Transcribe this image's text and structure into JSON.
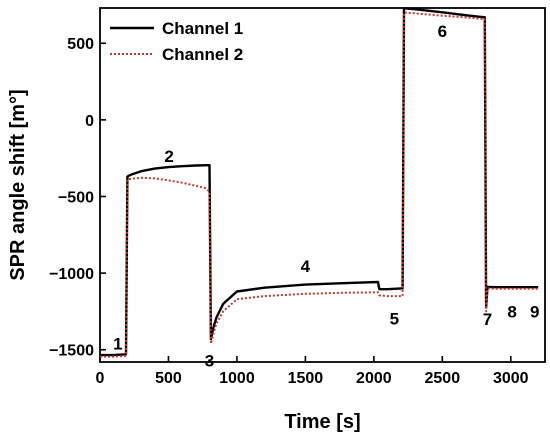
{
  "chart_data": {
    "type": "line",
    "xlabel": "Time [s]",
    "ylabel": "SPR angle shift [m°]",
    "xlim": [
      0,
      3250
    ],
    "ylim": [
      -1580,
      730
    ],
    "xticks": [
      0,
      500,
      1000,
      1500,
      2000,
      2500,
      3000
    ],
    "yticks": [
      -1500,
      -1000,
      -500,
      0,
      500
    ],
    "xtick_labels": [
      "0",
      "500",
      "1000",
      "1500",
      "2000",
      "2500",
      "3000"
    ],
    "ytick_labels": [
      "−1500",
      "−1000",
      "−500",
      "0",
      "500"
    ],
    "legend": {
      "position": "top-left"
    },
    "grid": false,
    "series": [
      {
        "name": "Channel 1",
        "color": "#000000",
        "style": "solid",
        "x": [
          0,
          100,
          190,
          200,
          220,
          300,
          400,
          500,
          600,
          700,
          790,
          800,
          810,
          830,
          850,
          900,
          1000,
          1200,
          1500,
          1800,
          2030,
          2040,
          2100,
          2200,
          2210,
          2220,
          2300,
          2500,
          2700,
          2800,
          2810,
          2820,
          2830,
          2900,
          3000,
          3100,
          3200
        ],
        "y": [
          -1535,
          -1535,
          -1530,
          -370,
          -360,
          -335,
          -318,
          -308,
          -302,
          -298,
          -296,
          -296,
          -1430,
          -1350,
          -1290,
          -1200,
          -1120,
          -1095,
          -1075,
          -1065,
          -1058,
          -1105,
          -1105,
          -1100,
          -1100,
          728,
          722,
          702,
          680,
          670,
          670,
          -1225,
          -1090,
          -1092,
          -1092,
          -1092,
          -1092
        ]
      },
      {
        "name": "Channel 2",
        "color": "#c0392b",
        "style": "dotted",
        "x": [
          0,
          100,
          190,
          200,
          220,
          300,
          400,
          500,
          600,
          700,
          770,
          790,
          800,
          810,
          830,
          850,
          900,
          1000,
          1200,
          1500,
          1800,
          2030,
          2040,
          2100,
          2200,
          2210,
          2220,
          2300,
          2500,
          2700,
          2800,
          2810,
          2820,
          2830,
          2900,
          3000,
          3100,
          3200
        ],
        "y": [
          -1545,
          -1545,
          -1540,
          -390,
          -385,
          -378,
          -382,
          -395,
          -410,
          -430,
          -445,
          -460,
          -470,
          -1460,
          -1390,
          -1330,
          -1250,
          -1170,
          -1150,
          -1135,
          -1128,
          -1125,
          -1145,
          -1150,
          -1150,
          -1150,
          700,
          695,
          680,
          667,
          658,
          658,
          -1250,
          -1100,
          -1102,
          -1102,
          -1102,
          -1102
        ]
      }
    ],
    "annotations": [
      {
        "text": "1",
        "x": 130,
        "y": -1460
      },
      {
        "text": "2",
        "x": 505,
        "y": -235
      },
      {
        "text": "3",
        "x": 800,
        "y": -1570
      },
      {
        "text": "4",
        "x": 1500,
        "y": -955
      },
      {
        "text": "5",
        "x": 2150,
        "y": -1295
      },
      {
        "text": "6",
        "x": 2500,
        "y": 580
      },
      {
        "text": "7",
        "x": 2830,
        "y": -1300
      },
      {
        "text": "8",
        "x": 3010,
        "y": -1250
      },
      {
        "text": "9",
        "x": 3175,
        "y": -1250
      }
    ]
  }
}
